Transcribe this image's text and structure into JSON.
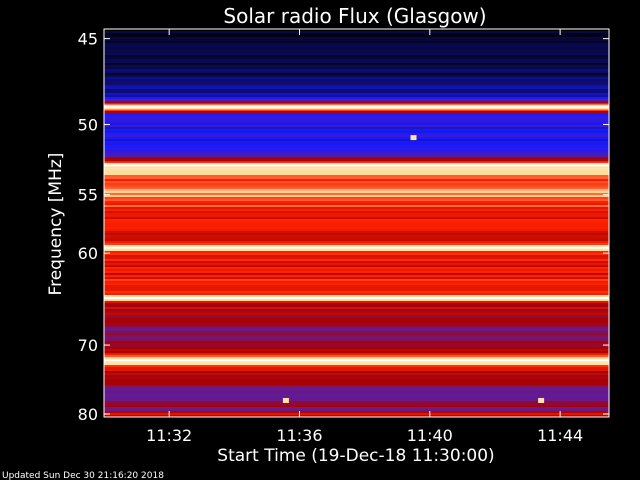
{
  "chart_data": {
    "type": "heatmap",
    "title": "Solar radio Flux (Glasgow)",
    "xlabel": "Start Time (19-Dec-18 11:30:00)",
    "ylabel": "Frequency [MHz]",
    "y_axis": {
      "range": [
        44.5,
        80.5
      ],
      "scale": "reciprocal",
      "ticks": [
        45,
        50,
        55,
        60,
        70,
        80
      ],
      "tick_labels": [
        "45",
        "50",
        "55",
        "60",
        "70",
        "80"
      ]
    },
    "x_axis": {
      "range": [
        "11:30:00",
        "11:45:30"
      ],
      "ticks": [
        "11:32",
        "11:36",
        "11:40",
        "11:44"
      ],
      "tick_labels": [
        "11:32",
        "11:36",
        "11:40",
        "11:44"
      ]
    },
    "colormap": [
      "#000000",
      "#0a0a5a",
      "#1a1aff",
      "#6a1a8a",
      "#aa0000",
      "#ff2200",
      "#ffdd99",
      "#ffffff"
    ],
    "spectrum_profile": [
      {
        "freq": 44.5,
        "intensity": 0.05
      },
      {
        "freq": 45.5,
        "intensity": 0.1
      },
      {
        "freq": 47.0,
        "intensity": 0.12
      },
      {
        "freq": 48.2,
        "intensity": 0.2
      },
      {
        "freq": 48.6,
        "intensity": 0.55
      },
      {
        "freq": 48.9,
        "intensity": 1.0
      },
      {
        "freq": 49.3,
        "intensity": 0.35
      },
      {
        "freq": 50.0,
        "intensity": 0.3
      },
      {
        "freq": 51.0,
        "intensity": 0.28
      },
      {
        "freq": 52.0,
        "intensity": 0.35
      },
      {
        "freq": 52.7,
        "intensity": 0.75
      },
      {
        "freq": 53.0,
        "intensity": 0.9
      },
      {
        "freq": 53.8,
        "intensity": 0.72
      },
      {
        "freq": 55.0,
        "intensity": 0.82
      },
      {
        "freq": 56.0,
        "intensity": 0.7
      },
      {
        "freq": 57.5,
        "intensity": 0.65
      },
      {
        "freq": 59.0,
        "intensity": 0.68
      },
      {
        "freq": 59.5,
        "intensity": 0.95
      },
      {
        "freq": 60.0,
        "intensity": 0.68
      },
      {
        "freq": 62.0,
        "intensity": 0.66
      },
      {
        "freq": 64.0,
        "intensity": 0.72
      },
      {
        "freq": 64.5,
        "intensity": 0.95
      },
      {
        "freq": 65.0,
        "intensity": 0.62
      },
      {
        "freq": 66.5,
        "intensity": 0.55
      },
      {
        "freq": 68.0,
        "intensity": 0.45
      },
      {
        "freq": 69.5,
        "intensity": 0.5
      },
      {
        "freq": 71.0,
        "intensity": 0.6
      },
      {
        "freq": 72.0,
        "intensity": 1.0
      },
      {
        "freq": 73.0,
        "intensity": 0.62
      },
      {
        "freq": 74.5,
        "intensity": 0.58
      },
      {
        "freq": 76.0,
        "intensity": 0.45
      },
      {
        "freq": 77.5,
        "intensity": 0.4
      },
      {
        "freq": 78.5,
        "intensity": 0.55
      },
      {
        "freq": 79.3,
        "intensity": 0.45
      },
      {
        "freq": 80.0,
        "intensity": 0.7
      },
      {
        "freq": 80.5,
        "intensity": 0.5
      }
    ],
    "bright_lines_mhz": [
      48.9,
      52.8,
      59.5,
      64.5,
      72.0
    ],
    "bursts": [
      {
        "time": "11:35:35",
        "freq": 77.9
      },
      {
        "time": "11:43:25",
        "freq": 77.9
      },
      {
        "time": "11:39:30",
        "freq": 50.9
      }
    ]
  },
  "footer": {
    "updated": "Updated Sun Dec 30 21:16:20 2018"
  }
}
